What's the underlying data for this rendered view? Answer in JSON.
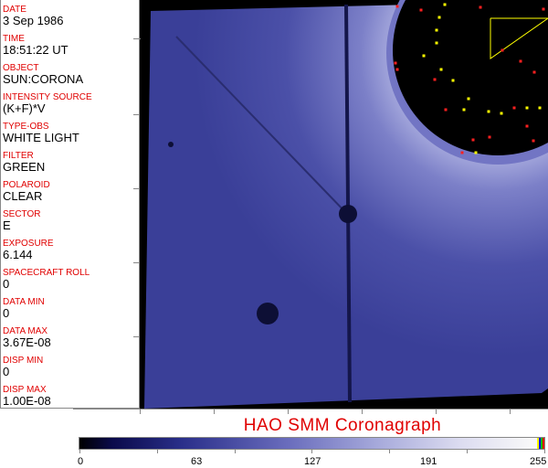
{
  "header_fields": [
    {
      "label": "DATE",
      "value": "3 Sep 1986"
    },
    {
      "label": "TIME",
      "value": "18:51:22 UT"
    },
    {
      "label": "OBJECT",
      "value": "SUN:CORONA"
    },
    {
      "label": "INTENSITY SOURCE",
      "value": "(K+F)*V"
    },
    {
      "label": "TYPE-OBS",
      "value": "WHITE LIGHT"
    },
    {
      "label": "FILTER",
      "value": "GREEN"
    },
    {
      "label": "POLAROID",
      "value": "CLEAR"
    },
    {
      "label": "SECTOR",
      "value": "E"
    },
    {
      "label": "EXPOSURE",
      "value": "6.144"
    },
    {
      "label": "SPACECRAFT ROLL",
      "value": "0"
    },
    {
      "label": "DATA MIN",
      "value": "0"
    },
    {
      "label": "DATA MAX",
      "value": "3.67E-08"
    },
    {
      "label": "DISP MIN",
      "value": "0"
    },
    {
      "label": "DISP MAX",
      "value": "1.00E-08"
    }
  ],
  "title": "HAO  SMM  Coronagraph",
  "colorbar": {
    "ticks": [
      "0",
      "63",
      "127",
      "191",
      "255"
    ],
    "min": 0,
    "max": 255,
    "end_colors": [
      "#ffff00",
      "#0000ff",
      "#00c000",
      "#ff0000"
    ]
  },
  "colors": {
    "label": "#e00000",
    "image_blue": "#3b3f9c"
  }
}
